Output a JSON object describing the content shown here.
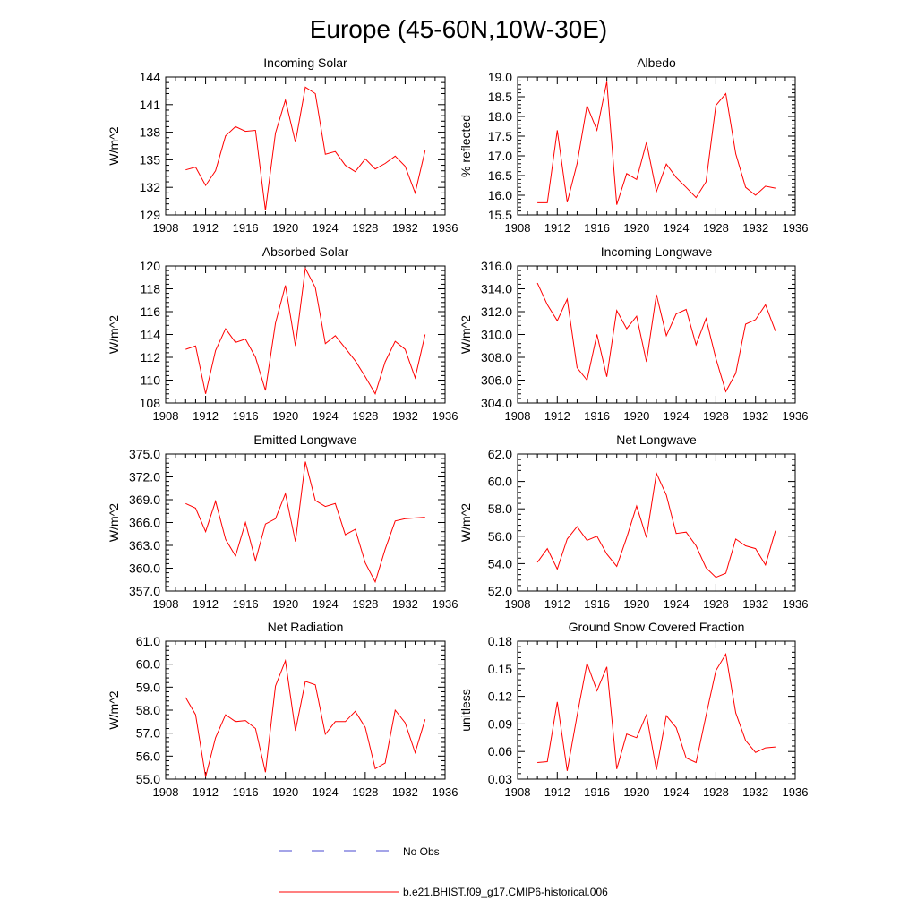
{
  "figure": {
    "title": "Europe (45-60N,10W-30E)"
  },
  "legend": {
    "items": [
      {
        "label": "No Obs",
        "color": "#4a4ad0",
        "style": "dashed"
      },
      {
        "label": "b.e21.BHIST.f09_g17.CMIP6-historical.006",
        "color": "#ff0000",
        "style": "solid"
      }
    ]
  },
  "chart_data": [
    {
      "type": "line",
      "title": "Incoming Solar",
      "ylabel": "W/m^2",
      "xlim": [
        1908,
        1936
      ],
      "ylim": [
        129,
        144
      ],
      "xticks": [
        "1908",
        "1912",
        "1916",
        "1920",
        "1924",
        "1928",
        "1932",
        "1936"
      ],
      "yticks": [
        "129",
        "132",
        "135",
        "138",
        "141",
        "144"
      ],
      "series": [
        {
          "color": "#ff0000",
          "x": [
            1910,
            1911,
            1912,
            1913,
            1914,
            1915,
            1916,
            1917,
            1918,
            1919,
            1920,
            1921,
            1922,
            1923,
            1924,
            1925,
            1926,
            1927,
            1928,
            1929,
            1930,
            1931,
            1932,
            1933,
            1934
          ],
          "y": [
            133.9,
            134.2,
            132.2,
            133.8,
            137.6,
            138.6,
            138.1,
            138.2,
            129.5,
            137.9,
            141.5,
            136.9,
            142.9,
            142.2,
            135.6,
            135.9,
            134.4,
            133.7,
            135.1,
            134.0,
            134.6,
            135.4,
            134.3,
            131.4,
            136.0
          ]
        }
      ]
    },
    {
      "type": "line",
      "title": "Albedo",
      "ylabel": "% reflected",
      "xlim": [
        1908,
        1936
      ],
      "ylim": [
        15.5,
        19.0
      ],
      "xticks": [
        "1908",
        "1912",
        "1916",
        "1920",
        "1924",
        "1928",
        "1932",
        "1936"
      ],
      "yticks": [
        "15.5",
        "16.0",
        "16.5",
        "17.0",
        "17.5",
        "18.0",
        "18.5",
        "19.0"
      ],
      "series": [
        {
          "color": "#ff0000",
          "x": [
            1910,
            1911,
            1912,
            1913,
            1914,
            1915,
            1916,
            1917,
            1918,
            1919,
            1920,
            1921,
            1922,
            1923,
            1924,
            1925,
            1926,
            1927,
            1928,
            1929,
            1930,
            1931,
            1932,
            1933,
            1934
          ],
          "y": [
            15.81,
            15.81,
            17.65,
            15.82,
            16.8,
            18.27,
            17.65,
            18.88,
            15.76,
            16.55,
            16.4,
            17.34,
            16.09,
            16.79,
            16.45,
            16.2,
            15.94,
            16.34,
            18.28,
            18.58,
            17.05,
            16.2,
            16.0,
            16.23,
            16.18
          ]
        }
      ]
    },
    {
      "type": "line",
      "title": "Absorbed Solar",
      "ylabel": "W/m^2",
      "xlim": [
        1908,
        1936
      ],
      "ylim": [
        108,
        120
      ],
      "xticks": [
        "1908",
        "1912",
        "1916",
        "1920",
        "1924",
        "1928",
        "1932",
        "1936"
      ],
      "yticks": [
        "108",
        "110",
        "112",
        "114",
        "116",
        "118",
        "120"
      ],
      "series": [
        {
          "color": "#ff0000",
          "x": [
            1910,
            1911,
            1912,
            1913,
            1914,
            1915,
            1916,
            1917,
            1918,
            1919,
            1920,
            1921,
            1922,
            1923,
            1924,
            1925,
            1926,
            1927,
            1928,
            1929,
            1930,
            1931,
            1932,
            1933,
            1934
          ],
          "y": [
            112.7,
            113.0,
            108.8,
            112.6,
            114.5,
            113.3,
            113.6,
            112.0,
            109.1,
            115.0,
            118.3,
            113.0,
            119.8,
            118.1,
            113.2,
            113.9,
            112.8,
            111.7,
            110.3,
            108.8,
            111.6,
            113.4,
            112.7,
            110.2,
            114.0
          ]
        }
      ]
    },
    {
      "type": "line",
      "title": "Incoming Longwave",
      "ylabel": "W/m^2",
      "xlim": [
        1908,
        1936
      ],
      "ylim": [
        304.0,
        316.0
      ],
      "xticks": [
        "1908",
        "1912",
        "1916",
        "1920",
        "1924",
        "1928",
        "1932",
        "1936"
      ],
      "yticks": [
        "304.0",
        "306.0",
        "308.0",
        "310.0",
        "312.0",
        "314.0",
        "316.0"
      ],
      "series": [
        {
          "color": "#ff0000",
          "x": [
            1910,
            1911,
            1912,
            1913,
            1914,
            1915,
            1916,
            1917,
            1918,
            1919,
            1920,
            1921,
            1922,
            1923,
            1924,
            1925,
            1926,
            1927,
            1928,
            1929,
            1930,
            1931,
            1932,
            1933,
            1934
          ],
          "y": [
            314.5,
            312.6,
            311.2,
            313.1,
            307.1,
            306.0,
            310.0,
            306.3,
            312.1,
            310.5,
            311.6,
            307.6,
            313.5,
            309.9,
            311.8,
            312.2,
            309.1,
            311.4,
            307.9,
            305.0,
            306.6,
            310.9,
            311.3,
            312.6,
            310.3
          ]
        }
      ]
    },
    {
      "type": "line",
      "title": "Emitted Longwave",
      "ylabel": "W/m^2",
      "xlim": [
        1908,
        1936
      ],
      "ylim": [
        357.0,
        375.0
      ],
      "xticks": [
        "1908",
        "1912",
        "1916",
        "1920",
        "1924",
        "1928",
        "1932",
        "1936"
      ],
      "yticks": [
        "357.0",
        "360.0",
        "363.0",
        "366.0",
        "369.0",
        "372.0",
        "375.0"
      ],
      "series": [
        {
          "color": "#ff0000",
          "x": [
            1910,
            1911,
            1912,
            1913,
            1914,
            1915,
            1916,
            1917,
            1918,
            1919,
            1920,
            1921,
            1922,
            1923,
            1924,
            1925,
            1926,
            1927,
            1928,
            1929,
            1930,
            1931,
            1932,
            1933,
            1934
          ],
          "y": [
            368.5,
            367.9,
            364.8,
            368.8,
            363.8,
            361.6,
            366.0,
            361.0,
            365.8,
            366.5,
            369.8,
            363.5,
            374.0,
            368.9,
            368.1,
            368.5,
            364.4,
            365.1,
            360.7,
            358.2,
            362.5,
            366.2,
            366.5,
            366.6,
            366.7
          ]
        }
      ]
    },
    {
      "type": "line",
      "title": "Net Longwave",
      "ylabel": "W/m^2",
      "xlim": [
        1908,
        1936
      ],
      "ylim": [
        52.0,
        62.0
      ],
      "xticks": [
        "1908",
        "1912",
        "1916",
        "1920",
        "1924",
        "1928",
        "1932",
        "1936"
      ],
      "yticks": [
        "52.0",
        "54.0",
        "56.0",
        "58.0",
        "60.0",
        "62.0"
      ],
      "series": [
        {
          "color": "#ff0000",
          "x": [
            1910,
            1911,
            1912,
            1913,
            1914,
            1915,
            1916,
            1917,
            1918,
            1919,
            1920,
            1921,
            1922,
            1923,
            1924,
            1925,
            1926,
            1927,
            1928,
            1929,
            1930,
            1931,
            1932,
            1933,
            1934
          ],
          "y": [
            54.1,
            55.1,
            53.6,
            55.8,
            56.7,
            55.7,
            56.0,
            54.7,
            53.8,
            55.9,
            58.2,
            55.9,
            60.6,
            59.0,
            56.2,
            56.3,
            55.3,
            53.7,
            53.0,
            53.3,
            55.8,
            55.3,
            55.1,
            53.9,
            56.4
          ]
        }
      ]
    },
    {
      "type": "line",
      "title": "Net Radiation",
      "ylabel": "W/m^2",
      "xlim": [
        1908,
        1936
      ],
      "ylim": [
        55.0,
        61.0
      ],
      "xticks": [
        "1908",
        "1912",
        "1916",
        "1920",
        "1924",
        "1928",
        "1932",
        "1936"
      ],
      "yticks": [
        "55.0",
        "56.0",
        "57.0",
        "58.0",
        "59.0",
        "60.0",
        "61.0"
      ],
      "series": [
        {
          "color": "#ff0000",
          "x": [
            1910,
            1911,
            1912,
            1913,
            1914,
            1915,
            1916,
            1917,
            1918,
            1919,
            1920,
            1921,
            1922,
            1923,
            1924,
            1925,
            1926,
            1927,
            1928,
            1929,
            1930,
            1931,
            1932,
            1933,
            1934
          ],
          "y": [
            58.55,
            57.8,
            55.1,
            56.8,
            57.8,
            57.5,
            57.55,
            57.2,
            55.3,
            59.05,
            60.15,
            57.1,
            59.25,
            59.1,
            56.95,
            57.5,
            57.5,
            57.95,
            57.25,
            55.45,
            55.7,
            58.0,
            57.45,
            56.15,
            57.6
          ]
        }
      ]
    },
    {
      "type": "line",
      "title": "Ground Snow Covered Fraction",
      "ylabel": "unitless",
      "xlim": [
        1908,
        1936
      ],
      "ylim": [
        0.03,
        0.18
      ],
      "xticks": [
        "1908",
        "1912",
        "1916",
        "1920",
        "1924",
        "1928",
        "1932",
        "1936"
      ],
      "yticks": [
        "0.03",
        "0.06",
        "0.09",
        "0.12",
        "0.15",
        "0.18"
      ],
      "series": [
        {
          "color": "#ff0000",
          "x": [
            1910,
            1911,
            1912,
            1913,
            1914,
            1915,
            1916,
            1917,
            1918,
            1919,
            1920,
            1921,
            1922,
            1923,
            1924,
            1925,
            1926,
            1927,
            1928,
            1929,
            1930,
            1931,
            1932,
            1933,
            1934
          ],
          "y": [
            0.048,
            0.049,
            0.114,
            0.039,
            0.099,
            0.156,
            0.126,
            0.152,
            0.041,
            0.079,
            0.075,
            0.1,
            0.04,
            0.099,
            0.086,
            0.053,
            0.048,
            0.099,
            0.148,
            0.166,
            0.102,
            0.072,
            0.059,
            0.064,
            0.065
          ]
        }
      ]
    }
  ]
}
